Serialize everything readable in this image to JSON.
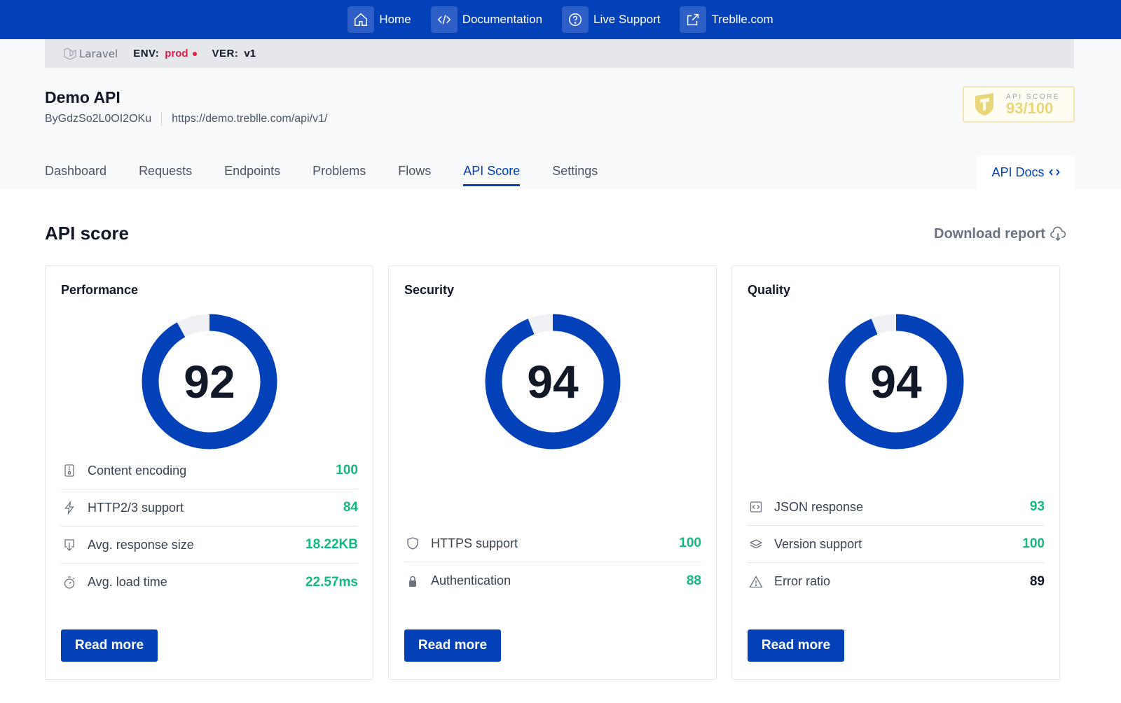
{
  "topnav": {
    "items": [
      {
        "label": "Home",
        "icon": "home-icon"
      },
      {
        "label": "Documentation",
        "icon": "code-icon"
      },
      {
        "label": "Live Support",
        "icon": "help-circle-icon"
      },
      {
        "label": "Treblle.com",
        "icon": "external-link-icon"
      }
    ],
    "background": "#0341b8"
  },
  "env_bar": {
    "framework": "Laravel",
    "env_label": "ENV:",
    "env_value": "prod",
    "ver_label": "VER:",
    "ver_value": "v1"
  },
  "api": {
    "title": "Demo API",
    "id": "ByGdzSo2L0OI2OKu",
    "url": "https://demo.treblle.com/api/v1/"
  },
  "score_badge": {
    "label": "API SCORE",
    "value": "93/100"
  },
  "tabs": [
    {
      "label": "Dashboard",
      "active": false
    },
    {
      "label": "Requests",
      "active": false
    },
    {
      "label": "Endpoints",
      "active": false
    },
    {
      "label": "Problems",
      "active": false
    },
    {
      "label": "Flows",
      "active": false
    },
    {
      "label": "API Score",
      "active": true
    },
    {
      "label": "Settings",
      "active": false
    }
  ],
  "api_docs_label": "API Docs",
  "section": {
    "title": "API score",
    "download_label": "Download report"
  },
  "cards": [
    {
      "title": "Performance",
      "score": "92",
      "score_fraction": 0.92,
      "metrics": [
        {
          "icon": "zip-file-icon",
          "label": "Content encoding",
          "value": "100"
        },
        {
          "icon": "lightning-icon",
          "label": "HTTP2/3 support",
          "value": "84"
        },
        {
          "icon": "download-icon",
          "label": "Avg. response size",
          "value": "18.22KB"
        },
        {
          "icon": "stopwatch-icon",
          "label": "Avg. load time",
          "value": "22.57ms"
        }
      ],
      "button": "Read more"
    },
    {
      "title": "Security",
      "score": "94",
      "score_fraction": 0.94,
      "metrics": [
        {
          "icon": "shield-icon",
          "label": "HTTPS support",
          "value": "100"
        },
        {
          "icon": "lock-icon",
          "label": "Authentication",
          "value": "88"
        }
      ],
      "button": "Read more"
    },
    {
      "title": "Quality",
      "score": "94",
      "score_fraction": 0.94,
      "metrics": [
        {
          "icon": "json-icon",
          "label": "JSON response",
          "value": "93"
        },
        {
          "icon": "layers-icon",
          "label": "Version support",
          "value": "100"
        },
        {
          "icon": "warning-icon",
          "label": "Error ratio",
          "value": "89"
        }
      ],
      "button": "Read more"
    }
  ],
  "colors": {
    "primary": "#0341b8",
    "good": "#10b981",
    "ring_track": "#eef0f4",
    "env_prod": "#e11d48",
    "badge_gold": "#e9d67a"
  }
}
